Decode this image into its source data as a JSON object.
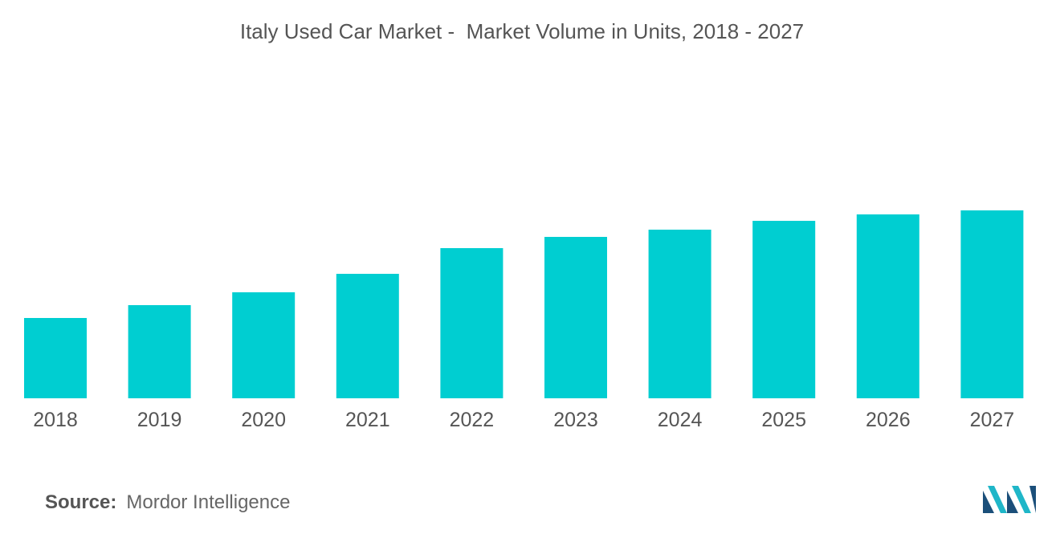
{
  "chart_data": {
    "type": "bar",
    "title": "Italy Used Car Market -  Market Volume in Units, 2018 - 2027",
    "xlabel": "",
    "ylabel": "",
    "categories": [
      "2018",
      "2019",
      "2020",
      "2021",
      "2022",
      "2023",
      "2024",
      "2025",
      "2026",
      "2027"
    ],
    "values": [
      100,
      116,
      132,
      155,
      187,
      201,
      210,
      221,
      229,
      234
    ],
    "ylim": [
      0,
      250
    ],
    "grid": false,
    "legend": "none",
    "bar_color": "#00CED1"
  },
  "source": {
    "label": "Source:",
    "text": "Mordor Intelligence"
  },
  "logo": {
    "icon": "mordor-intelligence-logo-icon",
    "colors": [
      "#1B4F7A",
      "#1FB6C8"
    ]
  }
}
